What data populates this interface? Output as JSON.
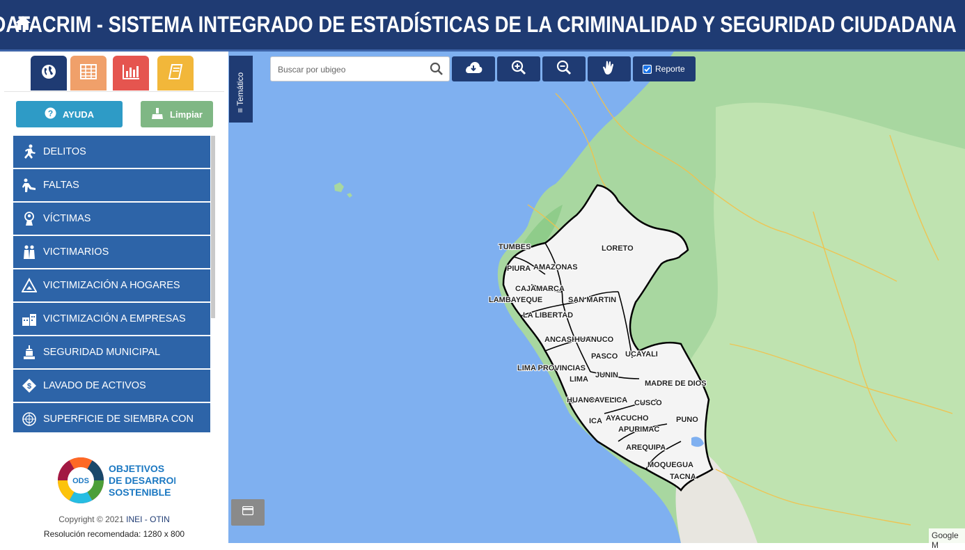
{
  "header": {
    "title": "DATACRIM - SISTEMA INTEGRADO DE ESTADÍSTICAS DE LA CRIMINALIDAD Y SEGURIDAD CIUDADANA",
    "home_icon": "home-icon",
    "background_color": "#1f3b73"
  },
  "sidebar": {
    "tabs": [
      {
        "icon": "globe-icon",
        "color": "#1f3b73",
        "active": true
      },
      {
        "icon": "table-icon",
        "color": "#f0a06a"
      },
      {
        "icon": "bar-chart-icon",
        "color": "#e5554f"
      },
      {
        "icon": "book-icon",
        "color": "#f2b73a"
      }
    ],
    "help_button": {
      "label": "AYUDA",
      "icon": "question-icon",
      "color": "#2e9bc6"
    },
    "clear_button": {
      "label": "Limpiar",
      "icon": "broom-icon",
      "color": "#7fb784"
    },
    "menu_items": [
      {
        "label": "DELITOS",
        "icon": "running-thief-icon"
      },
      {
        "label": "FALTAS",
        "icon": "falling-person-icon"
      },
      {
        "label": "VÍCTIMAS",
        "icon": "victim-icon"
      },
      {
        "label": "VICTIMARIOS",
        "icon": "criminals-icon"
      },
      {
        "label": "VICTIMIZACIÓN A HOGARES",
        "icon": "house-alert-icon"
      },
      {
        "label": "VICTIMIZACIÓN A EMPRESAS",
        "icon": "business-icon"
      },
      {
        "label": "SEGURIDAD MUNICIPAL",
        "icon": "municipal-building-icon"
      },
      {
        "label": "LAVADO DE ACTIVOS",
        "icon": "money-diamond-icon"
      },
      {
        "label": "SUPERFICIE DE SIEMBRA CON",
        "icon": "un-emblem-icon"
      }
    ],
    "ods_logo": {
      "line1": "OBJETIVOS",
      "line2": "DE DESARROLLO",
      "line3": "SOSTENIBLE",
      "center": "ODS"
    },
    "copyright_prefix": "Copyright © 2021",
    "copyright_org": "INEI - OTIN",
    "resolution": "Resolución recomendada: 1280 x 800"
  },
  "map": {
    "tematico_label": "Temático",
    "search": {
      "placeholder": "Buscar por ubigeo",
      "value": ""
    },
    "toolbar": [
      "cloud-download-icon",
      "zoom-in-icon",
      "zoom-out-icon",
      "hand-pan-icon"
    ],
    "report": {
      "label": "Reporte",
      "checked": true
    },
    "regions": [
      "TUMBES",
      "LORETO",
      "PIURA",
      "AMAZONAS",
      "CAJAMARCA",
      "LAMBAYEQUE",
      "SAN MARTIN",
      "LA LIBERTAD",
      "ANCASH",
      "HUANUCO",
      "UCAYALI",
      "PASCO",
      "LIMA PROVINCIAS",
      "JUNIN",
      "LIMA",
      "MADRE DE DIOS",
      "HUANCAVELICA",
      "CUSCO",
      "ICA",
      "AYACUCHO",
      "PUNO",
      "APURIMAC",
      "AREQUIPA",
      "MOQUEGUA",
      "TACNA"
    ],
    "attribution": "Google M"
  }
}
